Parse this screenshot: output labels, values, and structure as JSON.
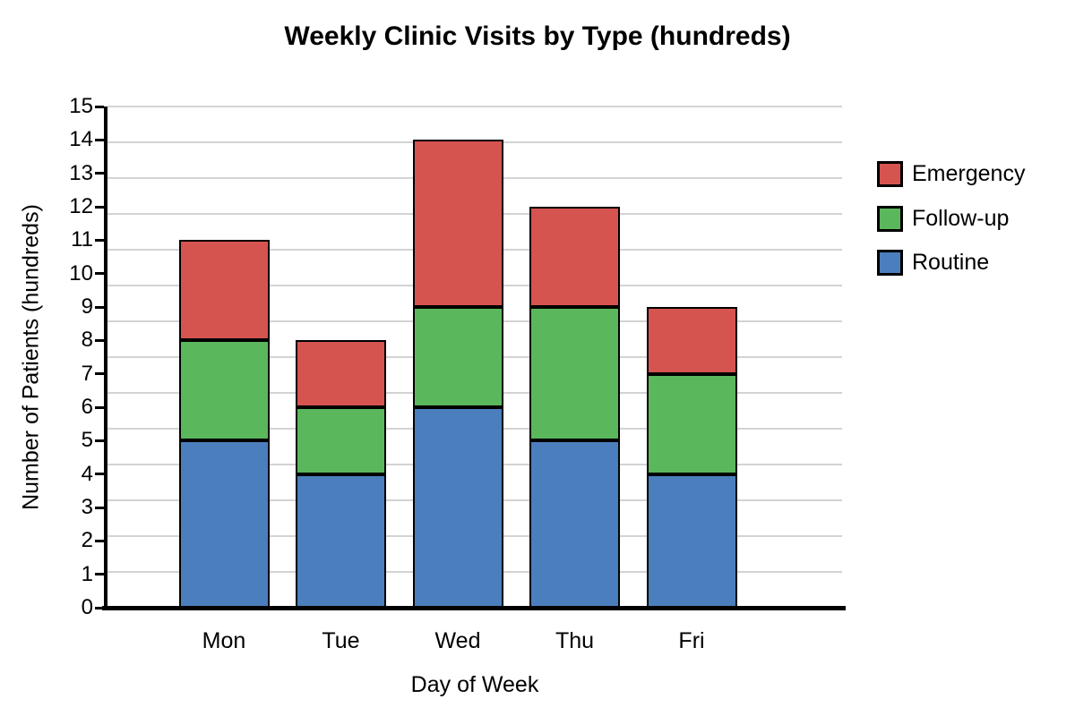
{
  "title": "Weekly Clinic Visits by Type (hundreds)",
  "chart_data": {
    "type": "bar",
    "stacked": true,
    "title": "Weekly Clinic Visits by Type (hundreds)",
    "categories": [
      "Mon",
      "Tue",
      "Wed",
      "Thu",
      "Fri"
    ],
    "series": [
      {
        "name": "Routine",
        "color": "#4b7ebc",
        "values": [
          5,
          4,
          6,
          5,
          4
        ]
      },
      {
        "name": "Follow-up",
        "color": "#5bb75c",
        "values": [
          3,
          2,
          3,
          4,
          3
        ]
      },
      {
        "name": "Emergency",
        "color": "#d65450",
        "values": [
          3,
          2,
          5,
          3,
          2
        ]
      }
    ],
    "stack_order_bottom_to_top": [
      "Routine",
      "Follow-up",
      "Emergency"
    ],
    "totals": [
      11,
      8,
      14,
      12,
      9
    ],
    "xlabel": "Day of Week",
    "ylabel": "Number of Patients (hundreds)",
    "ylim": [
      0,
      15
    ],
    "ytick_step": 1,
    "ytick_labels": [
      "0",
      "1",
      "2",
      "3",
      "4",
      "5",
      "6",
      "7",
      "8",
      "9",
      "10",
      "11",
      "12",
      "13",
      "14",
      "15"
    ],
    "grid": true,
    "gridline_color": "#d3d3d3",
    "axis_color": "#000000",
    "bar_border_color": "#000000",
    "legend_position": "right",
    "legend": [
      {
        "label": "Emergency",
        "color": "#d65450"
      },
      {
        "label": "Follow-up",
        "color": "#5bb75c"
      },
      {
        "label": "Routine",
        "color": "#4b7ebc"
      }
    ]
  }
}
